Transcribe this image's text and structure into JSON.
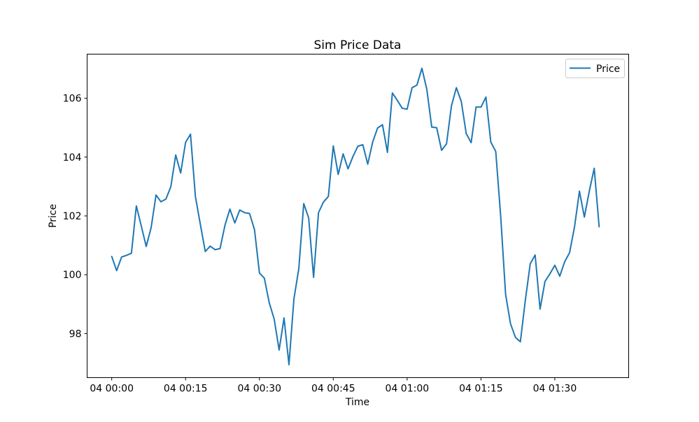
{
  "chart_data": {
    "type": "line",
    "title": "Sim Price Data",
    "xlabel": "Time",
    "ylabel": "Price",
    "x_start": "04 00:00",
    "x_step_minutes": 1,
    "xlim": [
      "03 23:55",
      "04 01:45"
    ],
    "ylim": [
      96.5,
      107.5
    ],
    "x_ticks": [
      {
        "minute": 0,
        "label": "04 00:00"
      },
      {
        "minute": 15,
        "label": "04 00:15"
      },
      {
        "minute": 30,
        "label": "04 00:30"
      },
      {
        "minute": 45,
        "label": "04 00:45"
      },
      {
        "minute": 60,
        "label": "04 01:00"
      },
      {
        "minute": 75,
        "label": "04 01:15"
      },
      {
        "minute": 90,
        "label": "04 01:30"
      }
    ],
    "y_ticks": [
      98,
      100,
      102,
      104,
      106
    ],
    "grid": false,
    "legend": "top-right",
    "series": [
      {
        "name": "Price",
        "color": "#1f77b4",
        "values": [
          100.62,
          100.14,
          100.6,
          100.66,
          100.73,
          102.34,
          101.66,
          100.96,
          101.6,
          102.71,
          102.48,
          102.57,
          102.99,
          104.07,
          103.46,
          104.5,
          104.78,
          102.65,
          101.71,
          100.79,
          100.97,
          100.85,
          100.89,
          101.68,
          102.23,
          101.76,
          102.2,
          102.11,
          102.08,
          101.53,
          100.06,
          99.88,
          99.04,
          98.49,
          97.44,
          98.53,
          96.94,
          99.17,
          100.21,
          102.42,
          101.93,
          99.91,
          102.11,
          102.47,
          102.66,
          104.38,
          103.41,
          104.11,
          103.6,
          104.02,
          104.37,
          104.42,
          103.76,
          104.51,
          104.99,
          105.1,
          104.16,
          106.18,
          105.93,
          105.66,
          105.63,
          106.36,
          106.45,
          107.02,
          106.3,
          105.02,
          105.0,
          104.23,
          104.45,
          105.74,
          106.36,
          105.89,
          104.8,
          104.49,
          105.7,
          105.7,
          106.04,
          104.51,
          104.19,
          102.0,
          99.33,
          98.33,
          97.87,
          97.72,
          99.12,
          100.37,
          100.67,
          98.83,
          99.77,
          100.03,
          100.32,
          99.95,
          100.44,
          100.75,
          101.63,
          102.84,
          101.96,
          102.84,
          103.62,
          101.63
        ]
      }
    ]
  }
}
